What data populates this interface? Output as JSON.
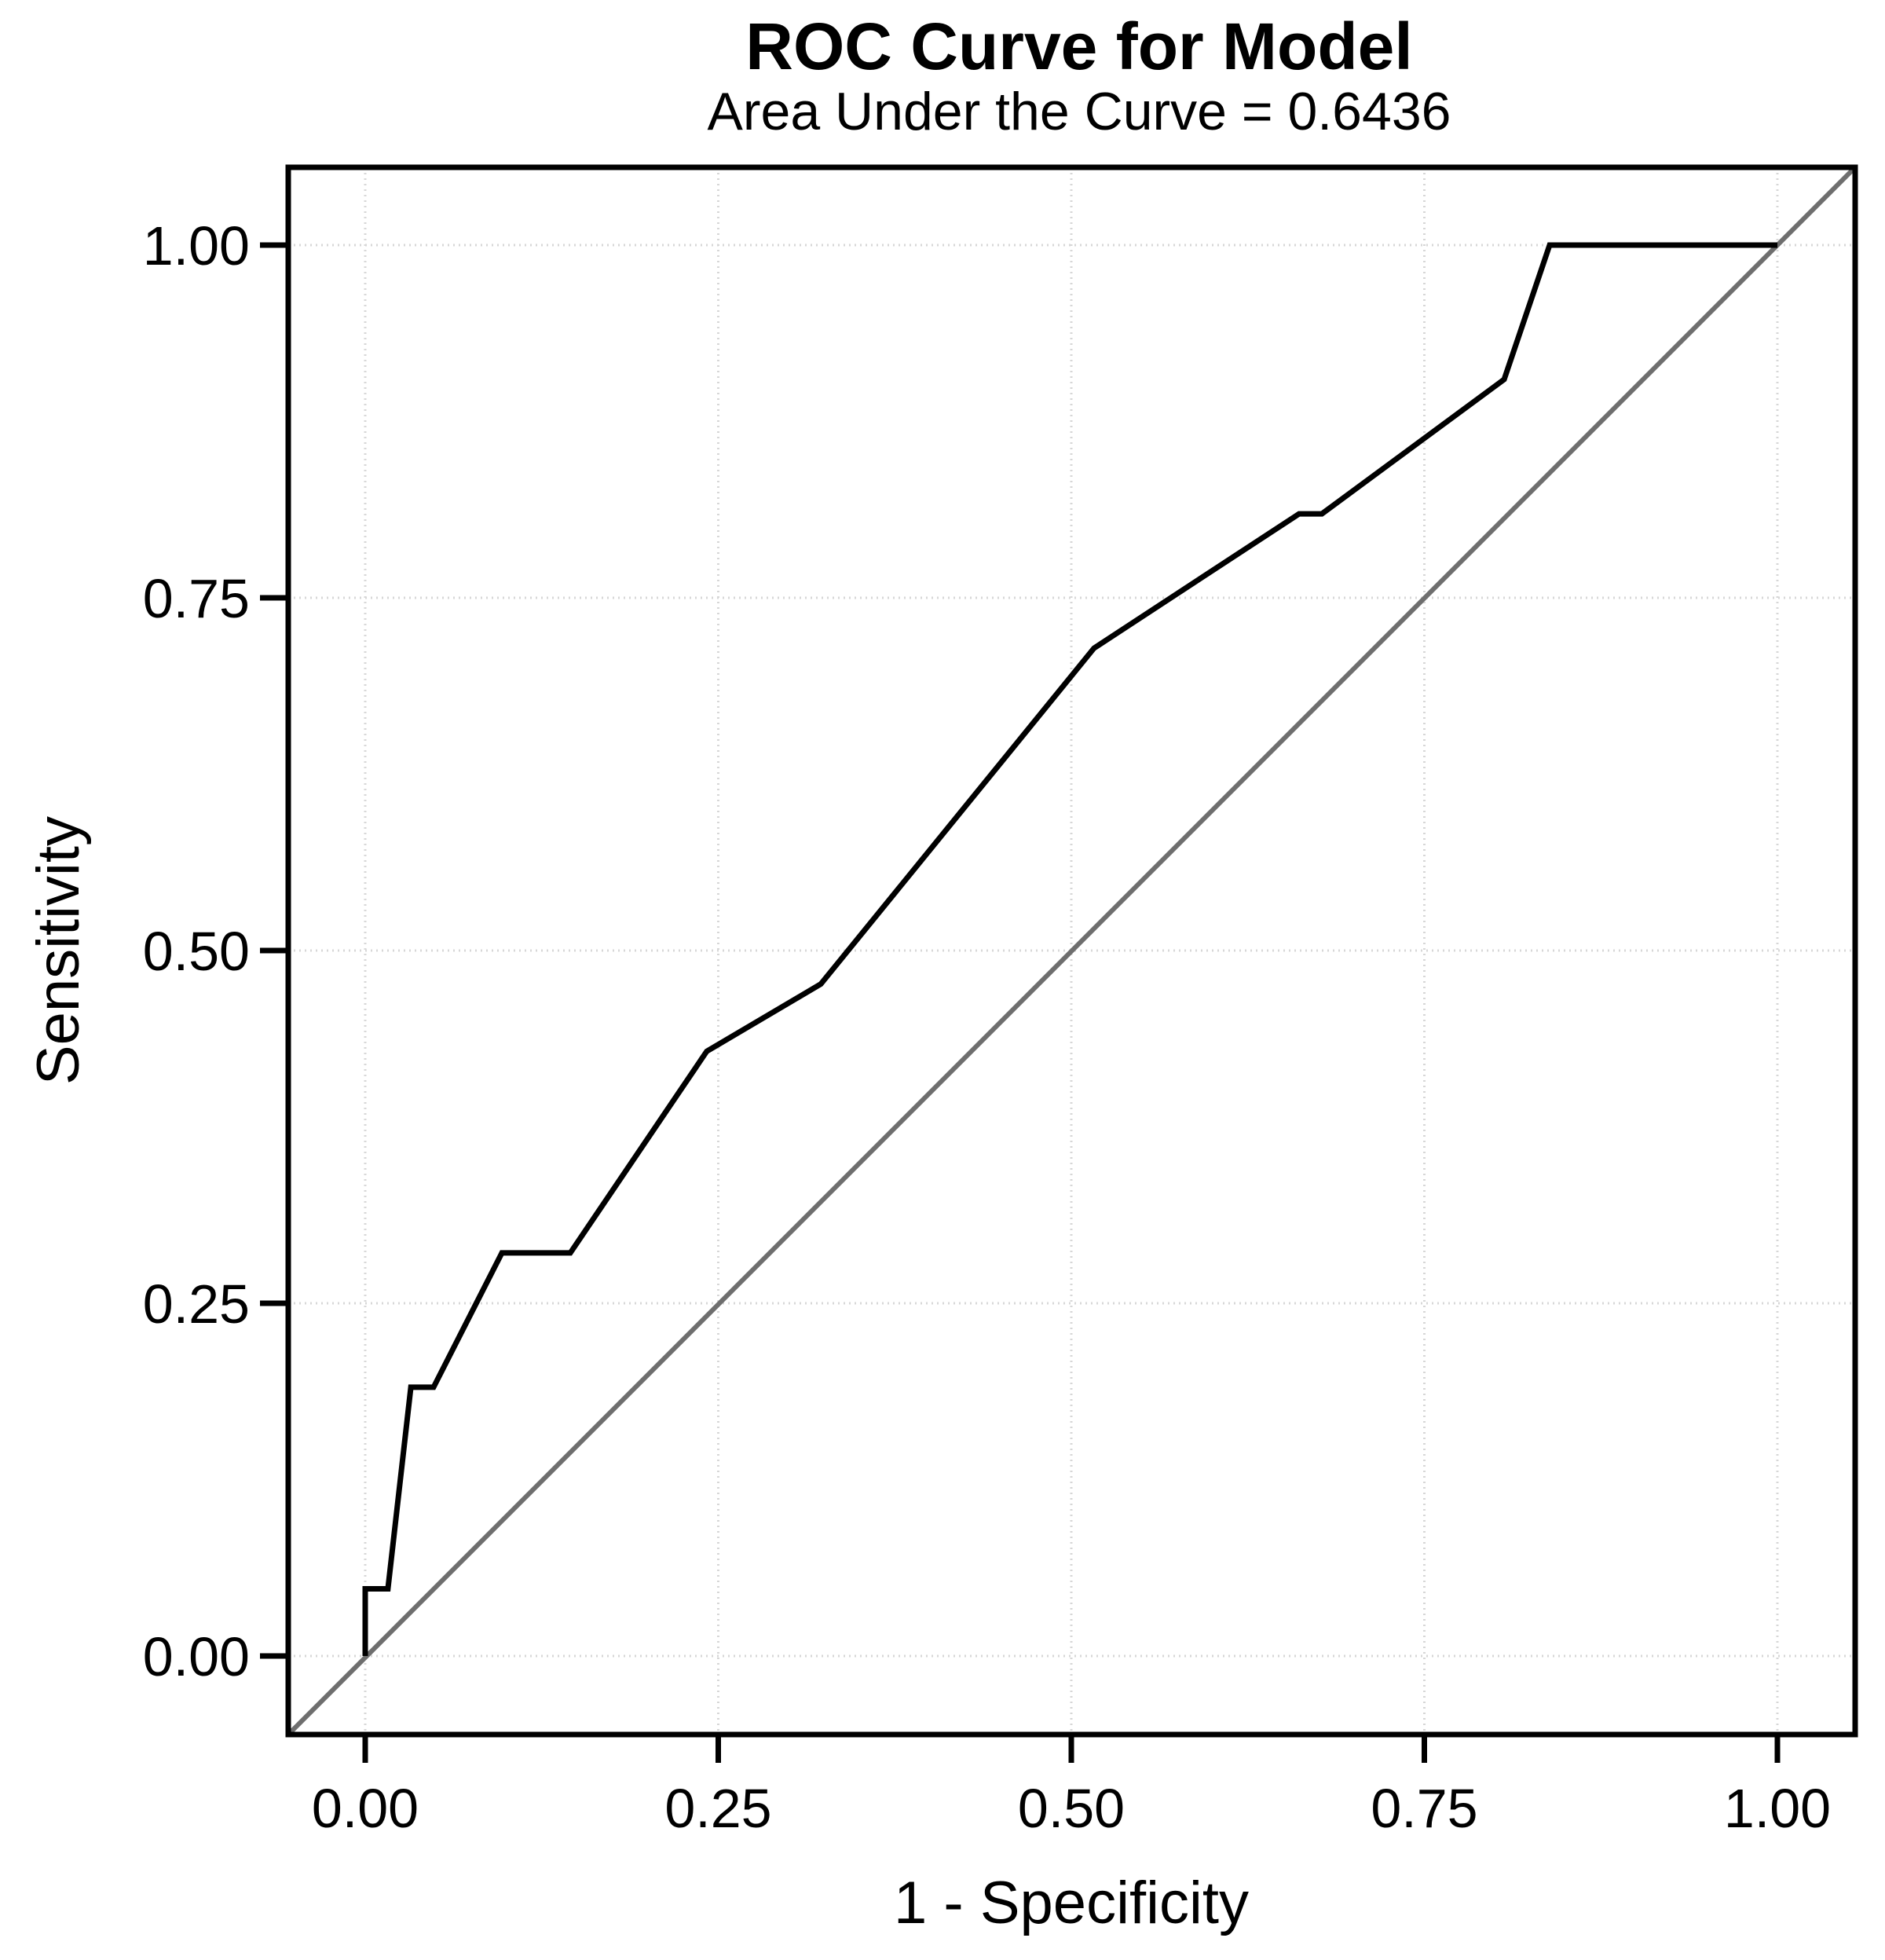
{
  "page": {
    "background": "#ffffff"
  },
  "chart_data": {
    "type": "line",
    "title": "ROC Curve for Model",
    "subtitle": "Area Under the Curve = 0.6436",
    "xlabel": "1 - Specificity",
    "ylabel": "Sensitivity",
    "auc": 0.6436,
    "xlim": [
      0,
      1
    ],
    "ylim": [
      0,
      1
    ],
    "grid": "dotted",
    "legend_position": "none",
    "x_ticks": [
      {
        "value": 0.0,
        "label": "0.00"
      },
      {
        "value": 0.25,
        "label": "0.25"
      },
      {
        "value": 0.5,
        "label": "0.50"
      },
      {
        "value": 0.75,
        "label": "0.75"
      },
      {
        "value": 1.0,
        "label": "1.00"
      }
    ],
    "y_ticks": [
      {
        "value": 0.0,
        "label": "0.00"
      },
      {
        "value": 0.25,
        "label": "0.25"
      },
      {
        "value": 0.5,
        "label": "0.50"
      },
      {
        "value": 0.75,
        "label": "0.75"
      },
      {
        "value": 1.0,
        "label": "1.00"
      }
    ],
    "series": [
      {
        "name": "ROC curve",
        "color": "#000000",
        "stroke_width": 7,
        "points": [
          [
            0.0,
            0.0
          ],
          [
            0.0,
            0.0476
          ],
          [
            0.0161,
            0.0476
          ],
          [
            0.0323,
            0.1905
          ],
          [
            0.0484,
            0.1905
          ],
          [
            0.0968,
            0.2857
          ],
          [
            0.1452,
            0.2857
          ],
          [
            0.2419,
            0.4286
          ],
          [
            0.3226,
            0.4762
          ],
          [
            0.5161,
            0.7143
          ],
          [
            0.6613,
            0.8095
          ],
          [
            0.6774,
            0.8095
          ],
          [
            0.8065,
            0.9048
          ],
          [
            0.8387,
            1.0
          ],
          [
            1.0,
            1.0
          ]
        ]
      },
      {
        "name": "Reference diagonal (chance line)",
        "color": "#6e6e6e",
        "stroke_width": 6,
        "points": [
          [
            0.0,
            0.0
          ],
          [
            1.0,
            1.0
          ]
        ]
      }
    ],
    "colors": {
      "frame": "#000000",
      "grid": "#d7d7d7",
      "curve": "#000000",
      "diagonal": "#6e6e6e",
      "text": "#000000"
    }
  }
}
